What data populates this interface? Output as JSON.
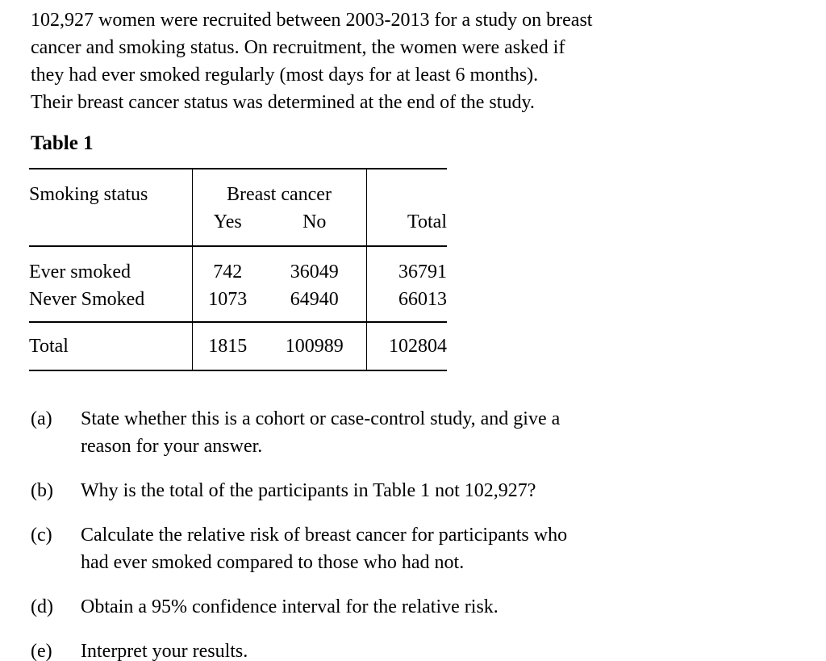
{
  "page": {
    "background_color": "#ffffff",
    "text_color": "#000000"
  },
  "intro": {
    "lines": [
      "102,927 women were recruited between 2003-2013 for a study on breast",
      "cancer and smoking status. On recruitment, the women were asked if",
      "they had ever smoked regularly (most days for at least 6 months).",
      "Their breast cancer status was determined at the end of the study."
    ]
  },
  "table": {
    "title": "Table 1",
    "header": {
      "row_label": "Smoking status",
      "group": "Breast cancer",
      "yes": "Yes",
      "no": "No",
      "total": "Total"
    },
    "rows": [
      {
        "label": "Ever smoked",
        "yes": "742",
        "no": "36049",
        "total": "36791"
      },
      {
        "label": "Never Smoked",
        "yes": "1073",
        "no": "64940",
        "total": "66013"
      }
    ],
    "total_row": {
      "label": "Total",
      "yes": "1815",
      "no": "100989",
      "total": "102804"
    }
  },
  "questions": [
    {
      "label": "(a)",
      "lines": [
        "State whether this is a cohort or case-control study, and give a",
        "reason for your answer."
      ]
    },
    {
      "label": "(b)",
      "lines": [
        "Why is the total of the participants in Table 1 not 102,927?"
      ]
    },
    {
      "label": "(c)",
      "lines": [
        "Calculate the relative risk of breast cancer for participants who",
        "had ever smoked compared to those who had not."
      ]
    },
    {
      "label": "(d)",
      "lines": [
        "Obtain a 95% confidence interval for the relative risk."
      ]
    },
    {
      "label": "(e)",
      "lines": [
        "Interpret your results."
      ]
    }
  ]
}
